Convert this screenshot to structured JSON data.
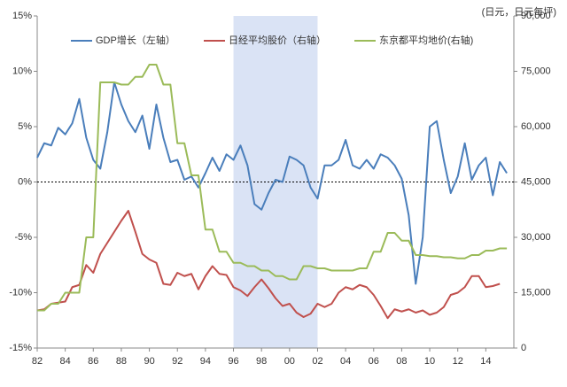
{
  "chart_data": {
    "type": "line",
    "axis_label_y2": "(日元，日元每坪)",
    "x": [
      1982,
      1982.5,
      1983,
      1983.5,
      1984,
      1984.5,
      1985,
      1985.5,
      1986,
      1986.5,
      1987,
      1987.5,
      1988,
      1988.5,
      1989,
      1989.5,
      1990,
      1990.5,
      1991,
      1991.5,
      1992,
      1992.5,
      1993,
      1993.5,
      1994,
      1994.5,
      1995,
      1995.5,
      1996,
      1996.5,
      1997,
      1997.5,
      1998,
      1998.5,
      1999,
      1999.5,
      2000,
      2000.5,
      2001,
      2001.5,
      2002,
      2002.5,
      2003,
      2003.5,
      2004,
      2004.5,
      2005,
      2005.5,
      2006,
      2006.5,
      2007,
      2007.5,
      2008,
      2008.5,
      2009,
      2009.5,
      2010,
      2010.5,
      2011,
      2011.5,
      2012,
      2012.5,
      2013,
      2013.5,
      2014,
      2014.5,
      2015,
      2015.5
    ],
    "series": [
      {
        "name": "GDP增长（左轴）",
        "color": "#4a7ebb",
        "axis": "y",
        "values": [
          2.2,
          3.5,
          3.3,
          4.9,
          4.3,
          5.3,
          7.5,
          4.0,
          2.0,
          1.2,
          4.5,
          9.0,
          7.0,
          5.5,
          4.5,
          6.0,
          3.0,
          7.0,
          4.0,
          1.8,
          2.0,
          0.2,
          0.5,
          -0.5,
          0.8,
          2.2,
          1.0,
          2.5,
          2.0,
          3.3,
          1.5,
          -2.0,
          -2.5,
          -1.0,
          0.2,
          0.0,
          2.3,
          2.0,
          1.5,
          -0.5,
          -1.5,
          1.5,
          1.5,
          2.0,
          3.8,
          1.5,
          1.2,
          2.0,
          1.2,
          2.5,
          2.2,
          1.5,
          0.3,
          -3.0,
          -9.2,
          -5.0,
          5.0,
          5.5,
          2.0,
          -1.0,
          0.5,
          3.5,
          0.2,
          1.5,
          2.2,
          -1.2,
          1.8,
          0.8
        ]
      },
      {
        "name": "日经平均股价（右轴）",
        "color": "#c0504d",
        "axis": "y2",
        "values": [
          10200,
          10500,
          12000,
          12300,
          12600,
          16500,
          17100,
          22500,
          20400,
          25500,
          28500,
          31500,
          34500,
          37200,
          31500,
          25500,
          24000,
          23100,
          17400,
          17100,
          20400,
          19500,
          20100,
          15900,
          19500,
          22200,
          20100,
          19800,
          16500,
          15600,
          14100,
          16500,
          18600,
          16200,
          13500,
          11400,
          12000,
          9600,
          8400,
          9300,
          12000,
          11100,
          12000,
          15000,
          16500,
          15900,
          17100,
          16500,
          14400,
          11400,
          8100,
          10500,
          9900,
          10500,
          9600,
          10200,
          9000,
          9600,
          11100,
          14400,
          15000,
          16500,
          19500,
          19500,
          16500,
          16800,
          17400,
          null
        ]
      },
      {
        "name": "东京都平均地价(右轴)",
        "color": "#9bbb59",
        "axis": "y2",
        "values": [
          10200,
          10200,
          12000,
          12000,
          15000,
          15000,
          15000,
          30000,
          30000,
          72000,
          72000,
          72000,
          71400,
          71400,
          73500,
          73500,
          76800,
          76800,
          71400,
          71400,
          55500,
          55500,
          46800,
          46800,
          32100,
          32100,
          26100,
          26100,
          23100,
          23100,
          22200,
          22200,
          21000,
          21000,
          19500,
          19500,
          18600,
          18600,
          22200,
          22200,
          21600,
          21600,
          21000,
          21000,
          21000,
          21000,
          21600,
          21600,
          26100,
          26100,
          31200,
          31200,
          29100,
          29100,
          25200,
          25200,
          24900,
          24900,
          24600,
          24600,
          24300,
          24300,
          25200,
          25200,
          26400,
          26400,
          27000,
          27000
        ]
      }
    ],
    "xlim": [
      1982,
      2016
    ],
    "xticks": [
      {
        "value": 1982,
        "label": "82"
      },
      {
        "value": 1984,
        "label": "84"
      },
      {
        "value": 1986,
        "label": "86"
      },
      {
        "value": 1988,
        "label": "88"
      },
      {
        "value": 1990,
        "label": "90"
      },
      {
        "value": 1992,
        "label": "92"
      },
      {
        "value": 1994,
        "label": "94"
      },
      {
        "value": 1996,
        "label": "96"
      },
      {
        "value": 1998,
        "label": "98"
      },
      {
        "value": 2000,
        "label": "00"
      },
      {
        "value": 2002,
        "label": "02"
      },
      {
        "value": 2004,
        "label": "04"
      },
      {
        "value": 2006,
        "label": "06"
      },
      {
        "value": 2008,
        "label": "08"
      },
      {
        "value": 2010,
        "label": "10"
      },
      {
        "value": 2012,
        "label": "12"
      },
      {
        "value": 2014,
        "label": "14"
      }
    ],
    "ylim": [
      -15,
      15
    ],
    "yticks": [
      {
        "value": -15,
        "label": "-15%"
      },
      {
        "value": -10,
        "label": "-10%"
      },
      {
        "value": -5,
        "label": "-5%"
      },
      {
        "value": 0,
        "label": "0%"
      },
      {
        "value": 5,
        "label": "5%"
      },
      {
        "value": 10,
        "label": "10%"
      },
      {
        "value": 15,
        "label": "15%"
      }
    ],
    "y2lim": [
      0,
      90000
    ],
    "y2ticks": [
      0,
      {
        "value": 15000,
        "label": "15,000"
      },
      {
        "value": 30000,
        "label": "30,000"
      },
      {
        "value": 45000,
        "label": "45,000"
      },
      {
        "value": 60000,
        "label": "60,000"
      },
      {
        "value": 75000,
        "label": "75,000"
      },
      {
        "value": 90000,
        "label": "90,000"
      }
    ],
    "shaded_x": [
      1996,
      2002
    ],
    "reference_y": 0,
    "legend": "top"
  }
}
